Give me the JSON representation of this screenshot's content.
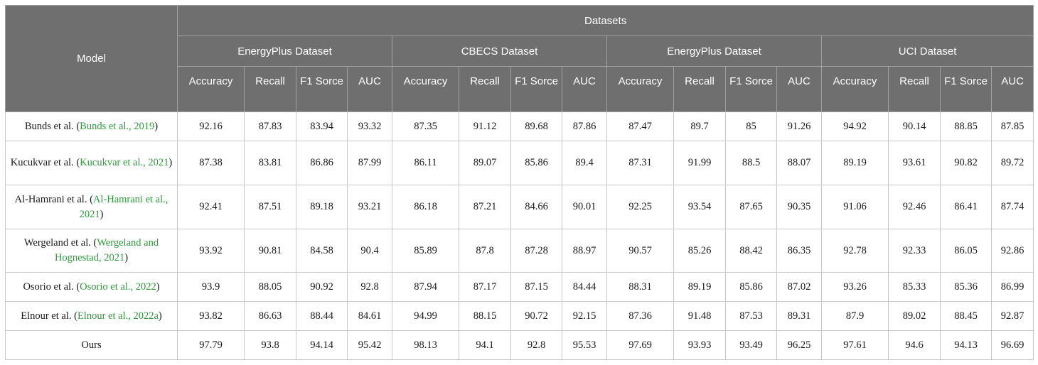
{
  "header": {
    "model": "Model",
    "datasets": "Datasets",
    "dataset_names": [
      "EnergyPlus Dataset",
      "CBECS Dataset",
      "EnergyPlus Dataset",
      "UCI Dataset"
    ],
    "metrics": [
      "Accuracy",
      "Recall",
      "F1 Sorce",
      "AUC"
    ]
  },
  "rows": [
    {
      "name": "Bunds et al. (",
      "cite": "Bunds et al., 2019",
      "tail": ")",
      "values": [
        "92.16",
        "87.83",
        "83.94",
        "93.32",
        "87.35",
        "91.12",
        "89.68",
        "87.86",
        "87.47",
        "89.7",
        "85",
        "91.26",
        "94.92",
        "90.14",
        "88.85",
        "87.85"
      ]
    },
    {
      "name": "Kucukvar et al. (",
      "cite": "Kucukvar et al., 2021",
      "tail": ")",
      "values": [
        "87.38",
        "83.81",
        "86.86",
        "87.99",
        "86.11",
        "89.07",
        "85.86",
        "89.4",
        "87.31",
        "91.99",
        "88.5",
        "88.07",
        "89.19",
        "93.61",
        "90.82",
        "89.72"
      ]
    },
    {
      "name": "Al-Hamrani et al. (",
      "cite": "Al-Hamrani et al., 2021",
      "tail": ")",
      "values": [
        "92.41",
        "87.51",
        "89.18",
        "93.21",
        "86.18",
        "87.21",
        "84.66",
        "90.01",
        "92.25",
        "93.54",
        "87.65",
        "90.35",
        "91.06",
        "92.46",
        "86.41",
        "87.74"
      ]
    },
    {
      "name": "Wergeland et al. (",
      "cite": "Wergeland and Hognestad, 2021",
      "tail": ")",
      "values": [
        "93.92",
        "90.81",
        "84.58",
        "90.4",
        "85.89",
        "87.8",
        "87.28",
        "88.97",
        "90.57",
        "85.26",
        "88.42",
        "86.35",
        "92.78",
        "92.33",
        "86.05",
        "92.86"
      ]
    },
    {
      "name": "Osorio et al. (",
      "cite": "Osorio et al., 2022",
      "tail": ")",
      "values": [
        "93.9",
        "88.05",
        "90.92",
        "92.8",
        "87.94",
        "87.17",
        "87.15",
        "84.44",
        "88.31",
        "89.19",
        "85.86",
        "87.02",
        "93.26",
        "85.33",
        "85.36",
        "86.99"
      ]
    },
    {
      "name": "Elnour et al. (",
      "cite": "Elnour et al., 2022a",
      "tail": ")",
      "values": [
        "93.82",
        "86.63",
        "88.44",
        "84.61",
        "94.99",
        "88.15",
        "90.72",
        "92.15",
        "87.36",
        "91.48",
        "87.53",
        "89.31",
        "87.9",
        "89.02",
        "88.45",
        "92.87"
      ]
    },
    {
      "name": "Ours",
      "cite": "",
      "tail": "",
      "values": [
        "97.79",
        "93.8",
        "94.14",
        "95.42",
        "98.13",
        "94.1",
        "92.8",
        "95.53",
        "97.69",
        "93.93",
        "93.49",
        "96.25",
        "97.61",
        "94.6",
        "94.13",
        "96.69"
      ]
    }
  ]
}
